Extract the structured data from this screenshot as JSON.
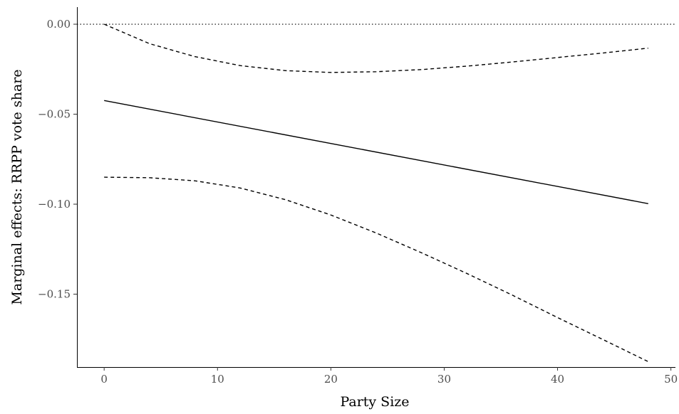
{
  "chart_data": {
    "type": "line",
    "title": "",
    "xlabel": "Party Size",
    "ylabel": "Marginal effects: RRPP vote share",
    "xlim": [
      -2.4,
      50.4
    ],
    "ylim": [
      -0.1905,
      0.0095
    ],
    "x_ticks": [
      0,
      10,
      20,
      30,
      40,
      50
    ],
    "x_tick_labels": [
      "0",
      "10",
      "20",
      "30",
      "40",
      "50"
    ],
    "y_ticks": [
      0.0,
      -0.05,
      -0.1,
      -0.15
    ],
    "y_tick_labels": [
      "0.00",
      "−0.05",
      "−0.10",
      "−0.15"
    ],
    "grid": false,
    "reference_line": {
      "y": 0,
      "style": "dotted",
      "color": "#000000"
    },
    "series": [
      {
        "role": "estimate",
        "style": "solid",
        "color": "#000000",
        "x": [
          0,
          48
        ],
        "y": [
          -0.0424,
          -0.0997
        ]
      },
      {
        "role": "upper",
        "style": "dashed",
        "color": "#000000",
        "x": [
          0,
          4,
          8,
          12,
          16,
          20,
          24,
          28,
          32,
          36,
          40,
          44,
          48
        ],
        "y": [
          0.0,
          -0.0108,
          -0.018,
          -0.023,
          -0.0258,
          -0.0268,
          -0.0264,
          -0.0252,
          -0.0233,
          -0.021,
          -0.0185,
          -0.016,
          -0.0133
        ]
      },
      {
        "role": "lower",
        "style": "dashed",
        "color": "#000000",
        "x": [
          0,
          4,
          8,
          12,
          16,
          20,
          24,
          28,
          32,
          36,
          40,
          44,
          48
        ],
        "y": [
          -0.085,
          -0.0853,
          -0.087,
          -0.091,
          -0.0975,
          -0.106,
          -0.116,
          -0.127,
          -0.1385,
          -0.1505,
          -0.163,
          -0.1752,
          -0.1875
        ]
      }
    ]
  }
}
